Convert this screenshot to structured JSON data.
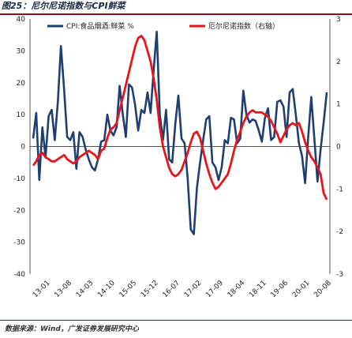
{
  "figure": {
    "title": "图25：尼尔尼诺指数与CPI鲜菜",
    "source": "数据来源：Wind，广发证券发展研究中心"
  },
  "chart_data": {
    "type": "line",
    "x": [
      "13-01",
      "13-02",
      "13-03",
      "13-04",
      "13-05",
      "13-06",
      "13-07",
      "13-08",
      "13-09",
      "13-10",
      "13-11",
      "13-12",
      "14-01",
      "14-02",
      "14-03",
      "14-04",
      "14-05",
      "14-06",
      "14-07",
      "14-08",
      "14-09",
      "14-10",
      "14-11",
      "14-12",
      "15-01",
      "15-02",
      "15-03",
      "15-04",
      "15-05",
      "15-06",
      "15-07",
      "15-08",
      "15-09",
      "15-10",
      "15-11",
      "15-12",
      "16-01",
      "16-02",
      "16-03",
      "16-04",
      "16-05",
      "16-06",
      "16-07",
      "16-08",
      "16-09",
      "16-10",
      "16-11",
      "16-12",
      "17-01",
      "17-02",
      "17-03",
      "17-04",
      "17-05",
      "17-06",
      "17-07",
      "17-08",
      "17-09",
      "17-10",
      "17-11",
      "17-12",
      "18-01",
      "18-02",
      "18-03",
      "18-04",
      "18-05",
      "18-06",
      "18-07",
      "18-08",
      "18-09",
      "18-10",
      "18-11",
      "18-12",
      "19-01",
      "19-02",
      "19-03",
      "19-04",
      "19-05",
      "19-06",
      "19-07",
      "19-08",
      "19-09",
      "19-10",
      "19-11",
      "19-12",
      "20-01",
      "20-02",
      "20-03",
      "20-04",
      "20-05",
      "20-06",
      "20-07",
      "20-08",
      "20-09",
      "20-10",
      "20-11",
      "20-12"
    ],
    "x_tick_labels": [
      "13-01",
      "13-08",
      "14-03",
      "14-10",
      "15-05",
      "15-12",
      "16-07",
      "17-02",
      "17-09",
      "18-04",
      "18-11",
      "19-06",
      "20-01",
      "20-08"
    ],
    "y_left": {
      "lim": [
        -40,
        40
      ],
      "ticks": [
        40,
        30,
        20,
        10,
        0,
        -10,
        -20,
        -30,
        -40
      ]
    },
    "y_right": {
      "lim": [
        -3,
        3
      ],
      "ticks": [
        3,
        2,
        1,
        0,
        -1,
        -2,
        -3
      ]
    },
    "legend_position": "top",
    "series": [
      {
        "name": "CPI:食品烟酒:鲜菜 %",
        "axis": "left",
        "color": "#1f3f73",
        "values": [
          2.5,
          10.5,
          -10.5,
          6.0,
          -3.5,
          9.5,
          11.5,
          2.0,
          14.0,
          31.5,
          18.0,
          3.0,
          2.0,
          4.5,
          -7.0,
          4.5,
          3.0,
          -1.0,
          -4.0,
          -6.5,
          -7.5,
          -4.0,
          1.5,
          2.0,
          10.0,
          5.0,
          3.5,
          6.0,
          19.0,
          10.0,
          3.0,
          19.5,
          18.5,
          13.0,
          5.0,
          11.5,
          10.5,
          17.0,
          10.5,
          24.0,
          36.0,
          10.0,
          2.0,
          11.5,
          -4.0,
          -5.0,
          7.0,
          16.0,
          2.5,
          1.0,
          -10.0,
          -26.0,
          -27.5,
          -13.0,
          -5.0,
          2.0,
          8.5,
          9.5,
          -5.0,
          -6.5,
          -10.5,
          -6.5,
          2.0,
          1.0,
          9.0,
          8.5,
          1.0,
          2.5,
          17.5,
          10.0,
          7.5,
          8.5,
          8.0,
          5.0,
          1.5,
          9.0,
          12.0,
          2.0,
          3.0,
          14.0,
          14.5,
          12.5,
          3.0,
          17.0,
          18.0,
          10.0,
          1.0,
          -3.0,
          -11.5,
          3.0,
          15.5,
          2.5,
          -11.0,
          -1.0,
          7.5,
          17.0
        ]
      },
      {
        "name": "厄尔尼诺指数（右轴）",
        "axis": "right",
        "color": "#e8141c",
        "values": [
          -0.45,
          -0.35,
          -0.2,
          -0.15,
          -0.25,
          -0.3,
          -0.35,
          -0.35,
          -0.3,
          -0.25,
          -0.2,
          -0.3,
          -0.35,
          -0.4,
          -0.35,
          -0.25,
          -0.2,
          -0.15,
          -0.1,
          -0.15,
          -0.2,
          -0.3,
          -0.1,
          -0.05,
          0.2,
          0.4,
          0.45,
          0.55,
          0.85,
          1.15,
          1.45,
          1.75,
          2.05,
          2.35,
          2.55,
          2.6,
          2.5,
          2.25,
          2.0,
          1.6,
          1.1,
          0.45,
          0.0,
          -0.25,
          -0.5,
          -0.65,
          -0.7,
          -0.65,
          -0.55,
          -0.35,
          -0.15,
          0.1,
          0.3,
          0.35,
          0.2,
          -0.1,
          -0.4,
          -0.65,
          -0.85,
          -1.0,
          -0.95,
          -0.85,
          -0.75,
          -0.65,
          -0.4,
          -0.1,
          0.15,
          0.35,
          0.55,
          0.7,
          0.8,
          0.85,
          0.8,
          0.8,
          0.8,
          0.75,
          0.7,
          0.6,
          0.45,
          0.3,
          0.1,
          0.25,
          0.4,
          0.5,
          0.55,
          0.5,
          0.55,
          0.35,
          0.1,
          -0.1,
          -0.25,
          -0.35,
          -0.5,
          -0.65,
          -1.1,
          -1.25
        ]
      }
    ]
  }
}
